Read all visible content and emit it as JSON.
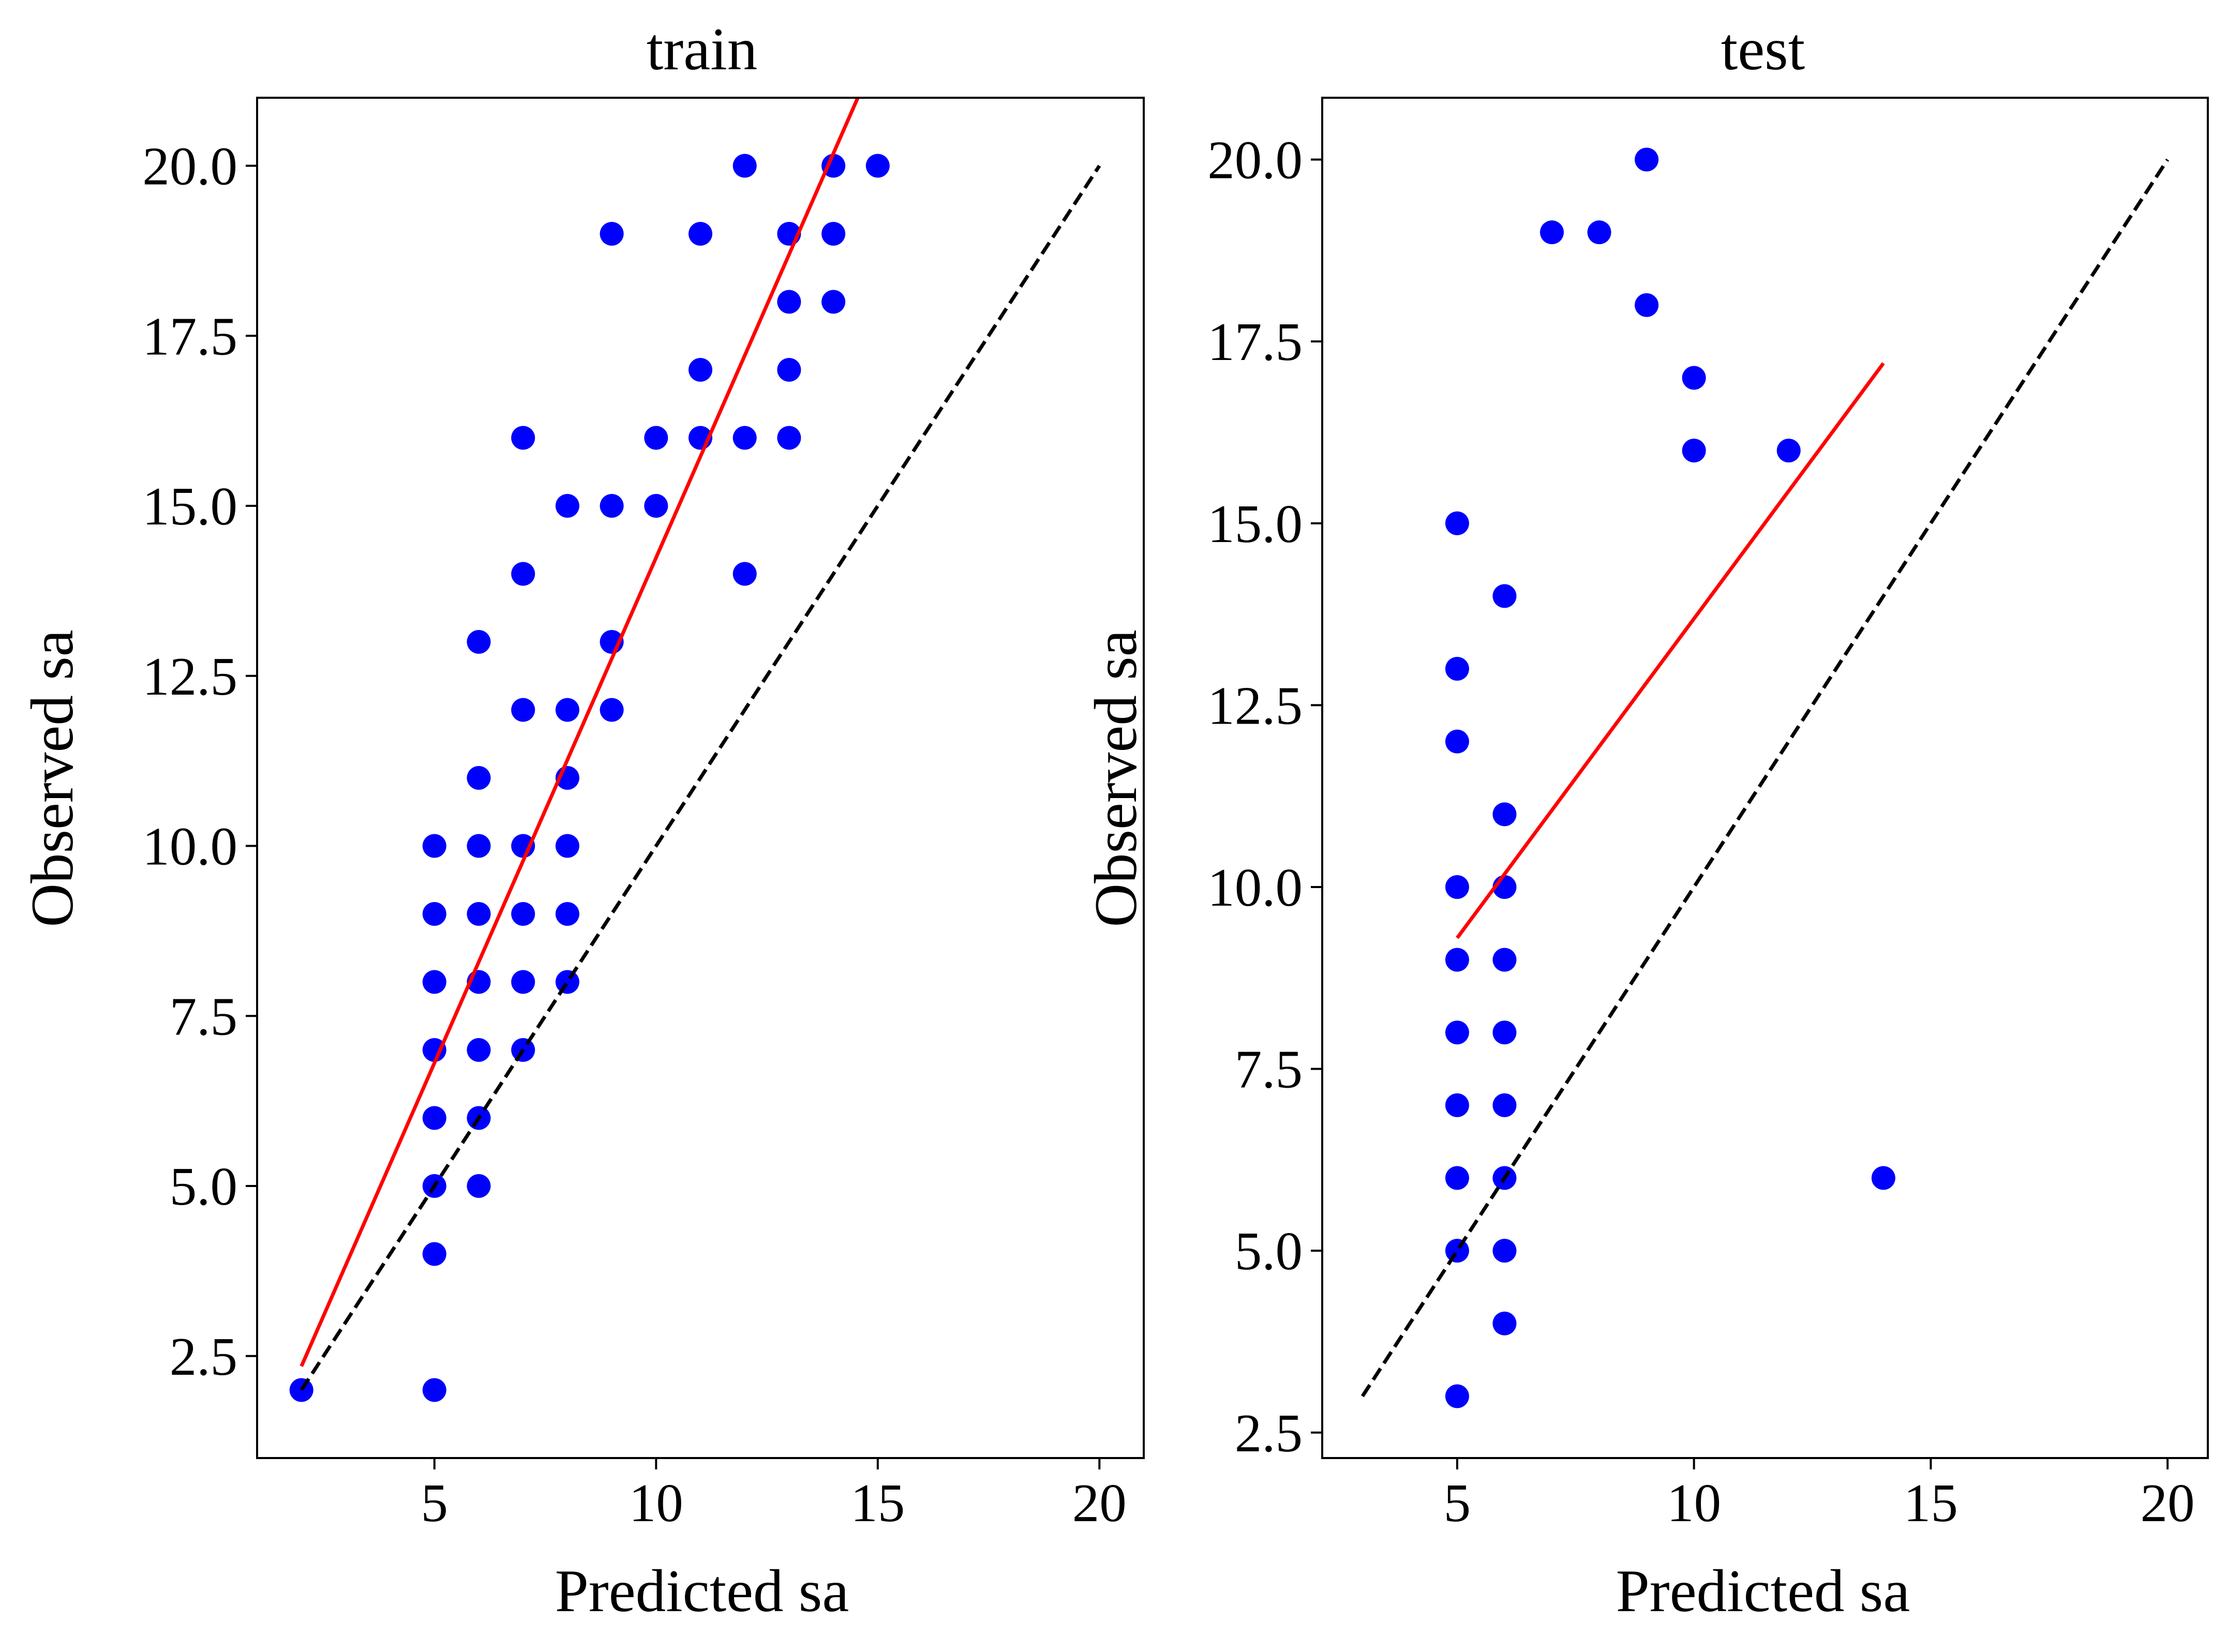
{
  "chart_data": [
    {
      "type": "scatter",
      "title": "train",
      "xlabel": "Predicted sa",
      "ylabel": "Observed sa",
      "xlim": [
        1.0,
        21.0
      ],
      "ylim": [
        1.0,
        21.0
      ],
      "xticks": [
        5,
        10,
        15,
        20
      ],
      "xtick_labels": [
        "5",
        "10",
        "15",
        "20"
      ],
      "yticks": [
        2.5,
        5.0,
        7.5,
        10.0,
        12.5,
        15.0,
        17.5,
        20.0
      ],
      "ytick_labels": [
        "2.5",
        "5.0",
        "7.5",
        "10.0",
        "12.5",
        "15.0",
        "17.5",
        "20.0"
      ],
      "grid": false,
      "colors": {
        "points": "#0000ff",
        "fit": "#ff0000",
        "identity": "#000000"
      },
      "series": [
        {
          "kind": "points",
          "x": [
            2,
            5,
            5,
            5,
            5,
            5,
            5,
            5,
            5,
            6,
            6,
            6,
            6,
            6,
            6,
            6,
            6,
            7,
            7,
            7,
            7,
            7,
            7,
            7,
            8,
            8,
            8,
            8,
            8,
            8,
            9,
            9,
            9,
            9,
            10,
            10,
            11,
            11,
            11,
            12,
            12,
            12,
            13,
            13,
            13,
            13,
            14,
            14,
            14,
            15
          ],
          "y": [
            2,
            2,
            4,
            5,
            6,
            7,
            8,
            9,
            10,
            5,
            6,
            7,
            8,
            9,
            10,
            11,
            13,
            7,
            8,
            9,
            10,
            12,
            14,
            16,
            8,
            9,
            10,
            11,
            12,
            15,
            12,
            13,
            15,
            19,
            15,
            16,
            16,
            17,
            19,
            14,
            16,
            20,
            16,
            17,
            18,
            19,
            18,
            19,
            20,
            20
          ]
        },
        {
          "kind": "fit-line",
          "x": [
            2,
            14.55
          ],
          "y": [
            2.35,
            21.0
          ]
        },
        {
          "kind": "identity-line",
          "x": [
            2,
            20
          ],
          "y": [
            2,
            20
          ]
        }
      ]
    },
    {
      "type": "scatter",
      "title": "test",
      "xlabel": "Predicted sa",
      "ylabel": "Observed sa",
      "xlim": [
        2.15,
        20.85
      ],
      "ylim": [
        2.15,
        20.85
      ],
      "xticks": [
        5,
        10,
        15,
        20
      ],
      "xtick_labels": [
        "5",
        "10",
        "15",
        "20"
      ],
      "yticks": [
        2.5,
        5.0,
        7.5,
        10.0,
        12.5,
        15.0,
        17.5,
        20.0
      ],
      "ytick_labels": [
        "2.5",
        "5.0",
        "7.5",
        "10.0",
        "12.5",
        "15.0",
        "17.5",
        "20.0"
      ],
      "grid": false,
      "colors": {
        "points": "#0000ff",
        "fit": "#ff0000",
        "identity": "#000000"
      },
      "series": [
        {
          "kind": "points",
          "x": [
            5,
            5,
            5,
            5,
            5,
            5,
            5,
            5,
            5,
            5,
            6,
            6,
            6,
            6,
            6,
            6,
            6,
            6,
            6,
            7,
            8,
            9,
            9,
            10,
            10,
            12,
            14
          ],
          "y": [
            3,
            5,
            6,
            7,
            8,
            9,
            10,
            12,
            13,
            15,
            4,
            5,
            6,
            7,
            8,
            9,
            10,
            11,
            14,
            19,
            19,
            18,
            20,
            16,
            17,
            16,
            6
          ]
        },
        {
          "kind": "fit-line",
          "x": [
            5,
            14
          ],
          "y": [
            9.3,
            17.2
          ]
        },
        {
          "kind": "identity-line",
          "x": [
            3,
            20
          ],
          "y": [
            3,
            20
          ]
        }
      ]
    }
  ]
}
